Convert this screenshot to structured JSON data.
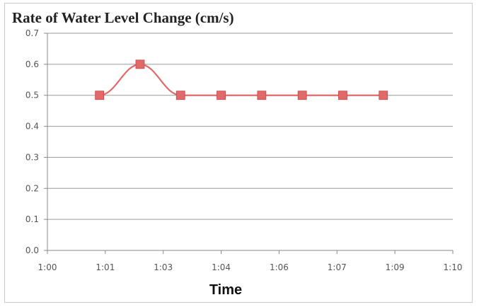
{
  "chart_data": {
    "type": "line",
    "title": "Rate of Water Level Change (cm/s)",
    "xlabel": "Time",
    "ylabel": "",
    "x_tick_labels": [
      "1:00",
      "1:01",
      "1:03",
      "1:04",
      "1:06",
      "1:07",
      "1:09",
      "1:10"
    ],
    "y_tick_labels": [
      "0.0",
      "0.1",
      "0.2",
      "0.3",
      "0.4",
      "0.5",
      "0.6",
      "0.7"
    ],
    "ylim": [
      0,
      0.7
    ],
    "grid": true,
    "legend": "none",
    "series": [
      {
        "x": [
          "1:01",
          "1:02",
          "1:03",
          "1:04",
          "1:05",
          "1:06",
          "1:07",
          "1:08"
        ],
        "values": [
          0.5,
          0.6,
          0.5,
          0.5,
          0.5,
          0.5,
          0.5,
          0.5
        ],
        "color": "#e06a6a",
        "marker": "square"
      }
    ]
  }
}
